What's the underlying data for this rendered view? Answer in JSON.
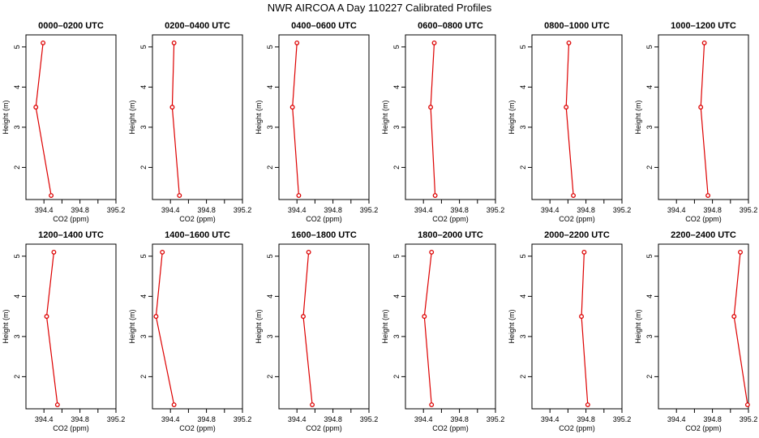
{
  "page_title": "NWR AIRCOA A  Day 110227  Calibrated Profiles",
  "chart_data": {
    "type": "line",
    "title": "NWR AIRCOA A  Day 110227  Calibrated Profiles",
    "xlabel": "CO2 (ppm)",
    "ylabel": "Height (m)",
    "xlim": [
      394.2,
      395.2
    ],
    "ylim": [
      1.2,
      5.3
    ],
    "xticks": [
      "394.4",
      "394.8",
      "395.2"
    ],
    "yticks": [
      "2",
      "3",
      "4",
      "5"
    ],
    "series_color": "#dd0000",
    "grid": false,
    "panels": [
      {
        "title": "0000–0200 UTC",
        "points": [
          {
            "height": 1.3,
            "co2": 394.48
          },
          {
            "height": 3.5,
            "co2": 394.31
          },
          {
            "height": 5.1,
            "co2": 394.39
          }
        ]
      },
      {
        "title": "0200–0400 UTC",
        "points": [
          {
            "height": 1.3,
            "co2": 394.5
          },
          {
            "height": 3.5,
            "co2": 394.42
          },
          {
            "height": 5.1,
            "co2": 394.44
          }
        ]
      },
      {
        "title": "0400–0600 UTC",
        "points": [
          {
            "height": 1.3,
            "co2": 394.42
          },
          {
            "height": 3.5,
            "co2": 394.35
          },
          {
            "height": 5.1,
            "co2": 394.4
          }
        ]
      },
      {
        "title": "0600–0800 UTC",
        "points": [
          {
            "height": 1.3,
            "co2": 394.53
          },
          {
            "height": 3.5,
            "co2": 394.48
          },
          {
            "height": 5.1,
            "co2": 394.52
          }
        ]
      },
      {
        "title": "0800–1000 UTC",
        "points": [
          {
            "height": 1.3,
            "co2": 394.66
          },
          {
            "height": 3.5,
            "co2": 394.58
          },
          {
            "height": 5.1,
            "co2": 394.61
          }
        ]
      },
      {
        "title": "1000–1200 UTC",
        "points": [
          {
            "height": 1.3,
            "co2": 394.75
          },
          {
            "height": 3.5,
            "co2": 394.67
          },
          {
            "height": 5.1,
            "co2": 394.71
          }
        ]
      },
      {
        "title": "1200–1400 UTC",
        "points": [
          {
            "height": 1.3,
            "co2": 394.55
          },
          {
            "height": 3.5,
            "co2": 394.43
          },
          {
            "height": 5.1,
            "co2": 394.51
          }
        ]
      },
      {
        "title": "1400–1600 UTC",
        "points": [
          {
            "height": 1.3,
            "co2": 394.44
          },
          {
            "height": 3.5,
            "co2": 394.24
          },
          {
            "height": 5.1,
            "co2": 394.31
          }
        ]
      },
      {
        "title": "1600–1800 UTC",
        "points": [
          {
            "height": 1.3,
            "co2": 394.57
          },
          {
            "height": 3.5,
            "co2": 394.47
          },
          {
            "height": 5.1,
            "co2": 394.53
          }
        ]
      },
      {
        "title": "1800–2000 UTC",
        "points": [
          {
            "height": 1.3,
            "co2": 394.49
          },
          {
            "height": 3.5,
            "co2": 394.41
          },
          {
            "height": 5.1,
            "co2": 394.49
          }
        ]
      },
      {
        "title": "2000–2200 UTC",
        "points": [
          {
            "height": 1.3,
            "co2": 394.82
          },
          {
            "height": 3.5,
            "co2": 394.75
          },
          {
            "height": 5.1,
            "co2": 394.78
          }
        ]
      },
      {
        "title": "2200–2400 UTC",
        "points": [
          {
            "height": 1.3,
            "co2": 395.19
          },
          {
            "height": 3.5,
            "co2": 395.04
          },
          {
            "height": 5.1,
            "co2": 395.11
          }
        ]
      }
    ]
  }
}
